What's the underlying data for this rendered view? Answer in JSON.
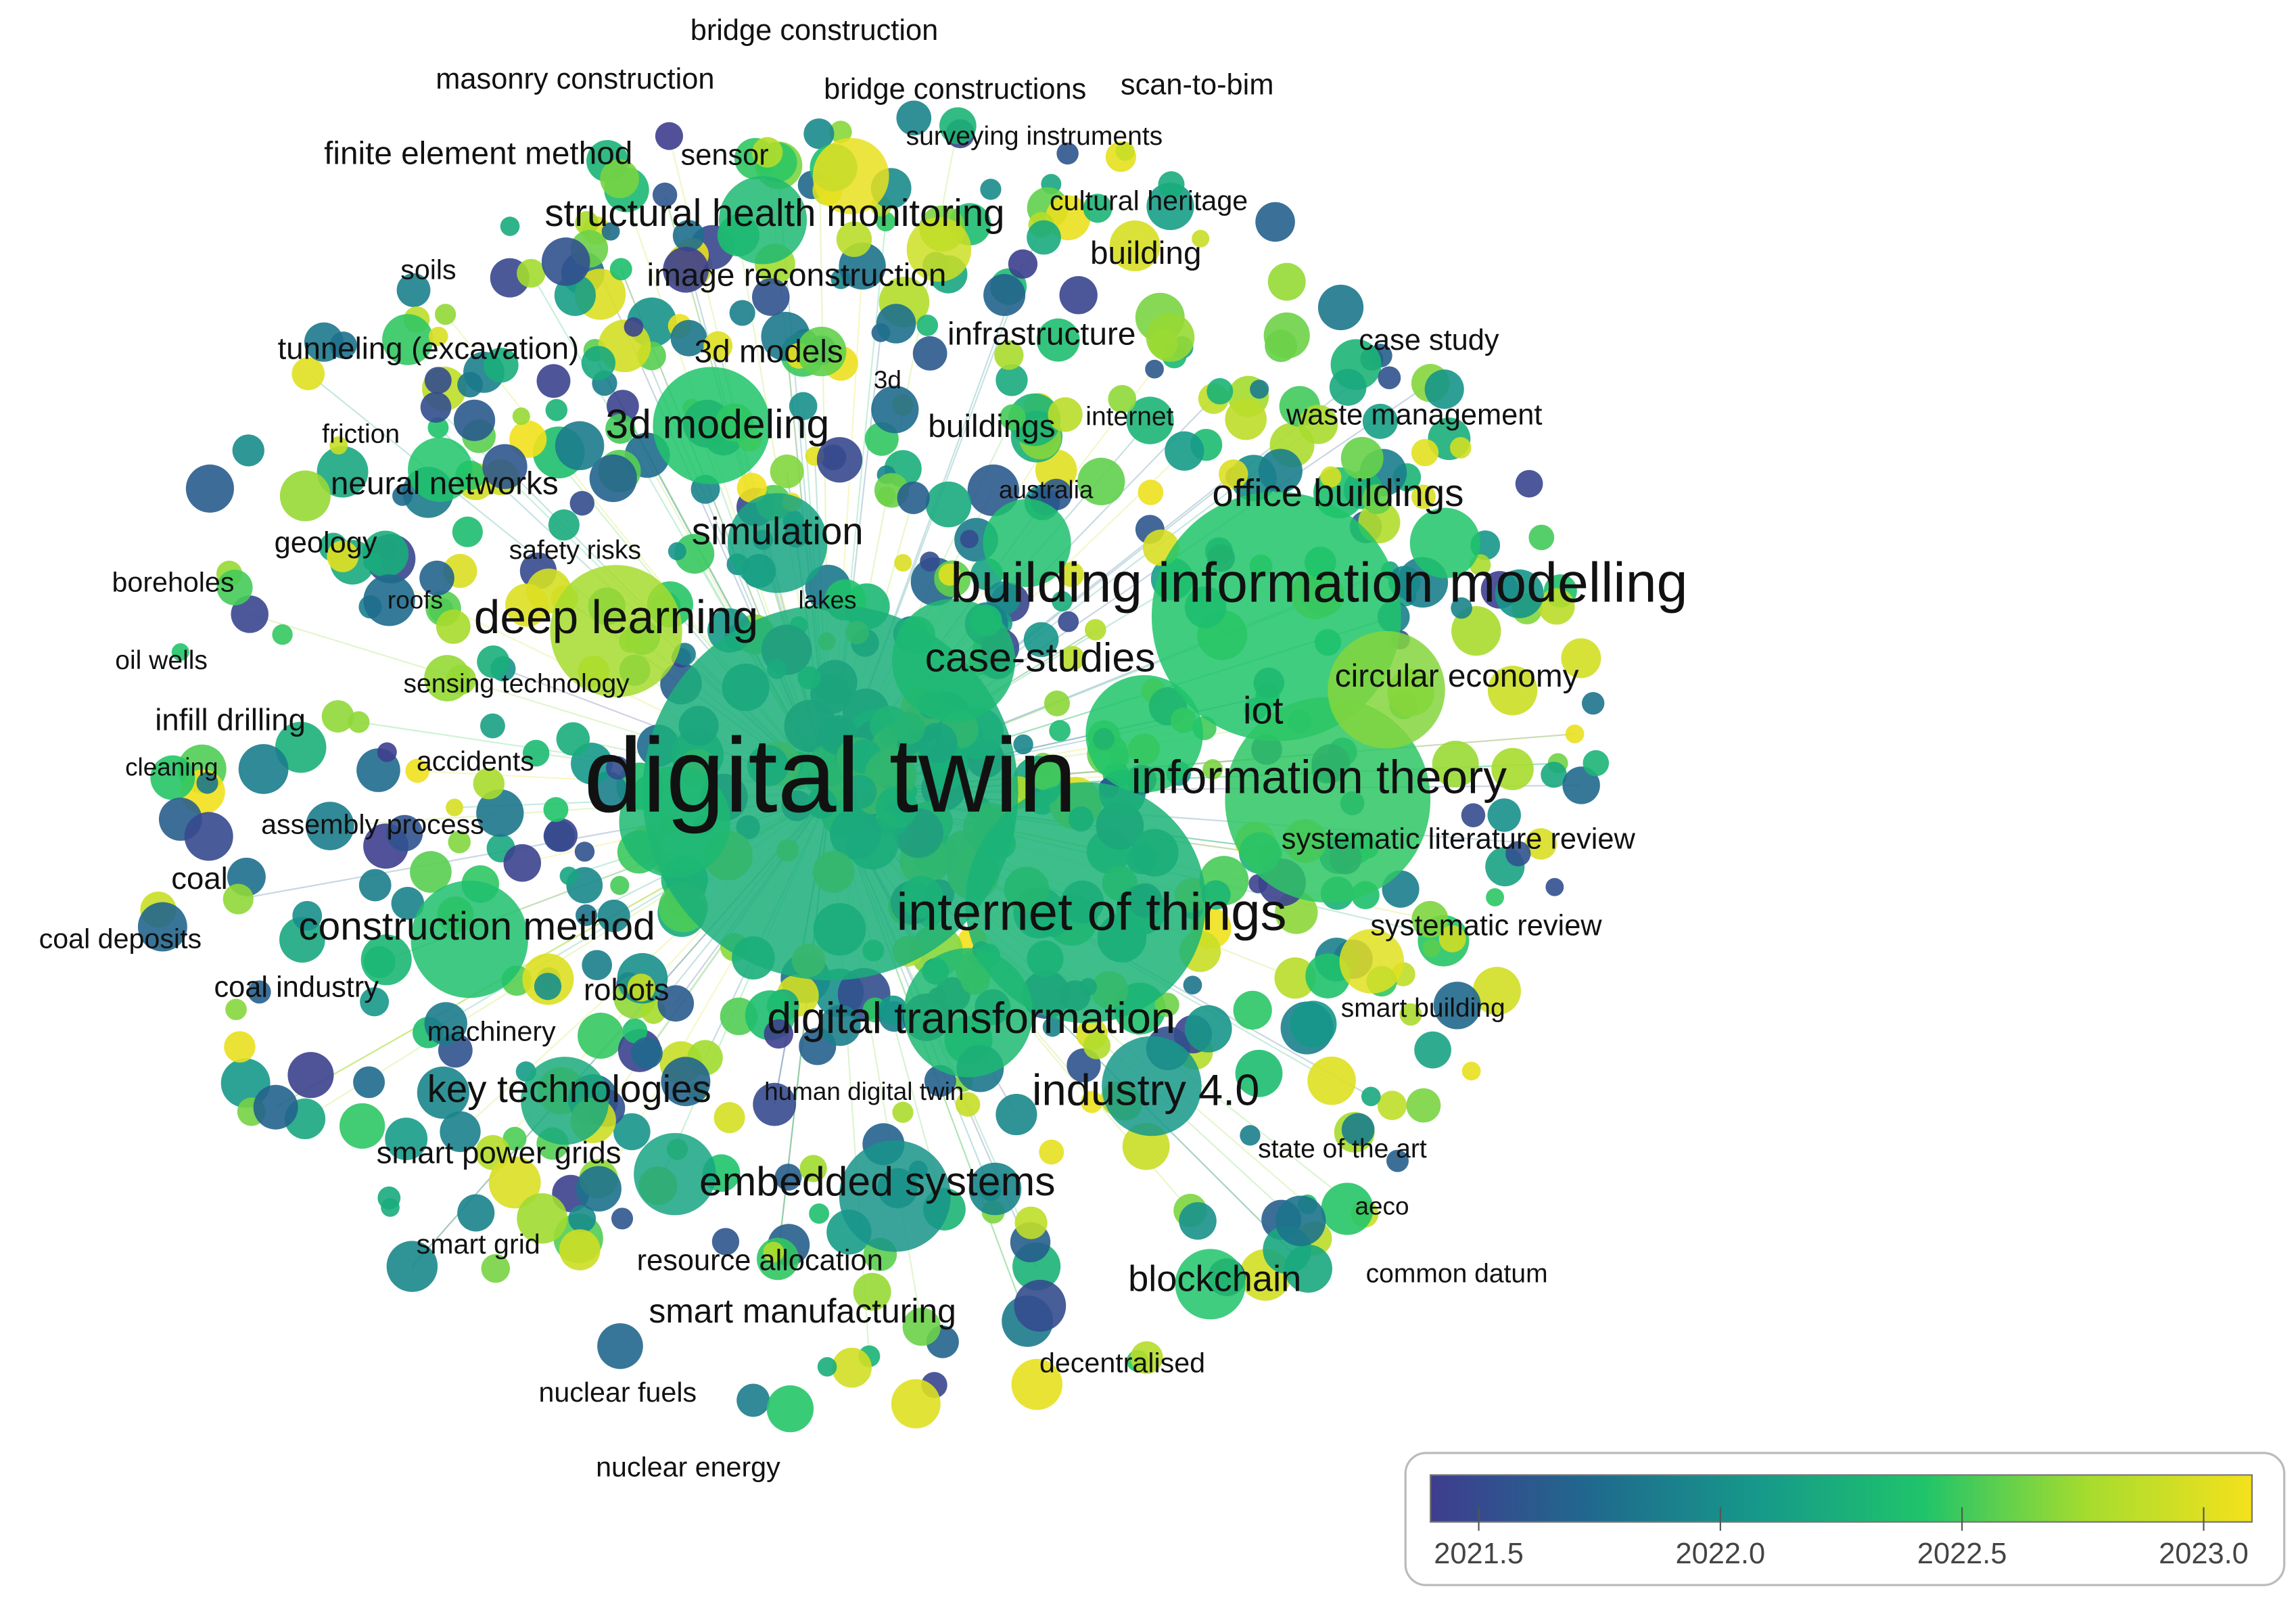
{
  "chart_data": {
    "type": "overlay-map",
    "nodes": [
      "bridge construction",
      "masonry construction",
      "bridge constructions",
      "scan-to-bim",
      "finite element method",
      "sensor",
      "surveying instruments",
      "cultural heritage",
      "structural health monitoring",
      "building",
      "soils",
      "image reconstruction",
      "tunneling (excavation)",
      "3d models",
      "infrastructure",
      "case study",
      "3d",
      "3d modeling",
      "buildings",
      "internet",
      "waste management",
      "friction",
      "neural networks",
      "australia",
      "office buildings",
      "simulation",
      "geology",
      "safety risks",
      "boreholes",
      "building information modelling",
      "lakes",
      "roofs",
      "deep learning",
      "case-studies",
      "oil wells",
      "sensing technology",
      "circular economy",
      "iot",
      "infill drilling",
      "accidents",
      "cleaning",
      "digital twin",
      "information theory",
      "assembly process",
      "systematic literature review",
      "coal",
      "internet of things",
      "construction method",
      "systematic review",
      "coal deposits",
      "coal industry",
      "robots",
      "smart building",
      "digital transformation",
      "machinery",
      "key technologies",
      "human digital twin",
      "industry 4.0",
      "state of the art",
      "smart power grids",
      "embedded systems",
      "aeco",
      "smart grid",
      "resource allocation",
      "blockchain",
      "common datum",
      "smart manufacturing",
      "decentralised",
      "nuclear fuels",
      "nuclear energy"
    ],
    "colormap": [
      "#3f3d8e",
      "#1f6a8d",
      "#16998a",
      "#1fc46a",
      "#a6dc2e",
      "#f5e11c"
    ],
    "clim": [
      2021.4,
      2023.1
    ],
    "cticks": [
      {
        "value": 2021.5,
        "label": "2021.5"
      },
      {
        "value": 2022,
        "label": "2022.0"
      },
      {
        "value": 2022.5,
        "label": "2022.5"
      },
      {
        "value": 2023,
        "label": "2023.0"
      }
    ]
  }
}
